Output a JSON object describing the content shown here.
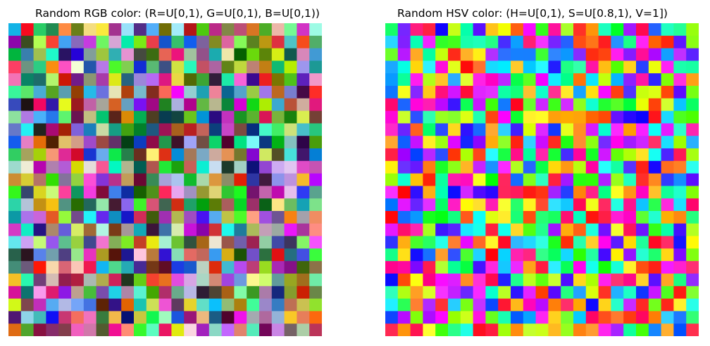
{
  "chart_data": [
    {
      "type": "heatmap",
      "title": "Random RGB color: (R=U[0,1), G=U[0,1), B=U[0,1))",
      "rows": 25,
      "cols": 25,
      "color_model": "rgb",
      "channel_ranges": {
        "R": [
          0,
          1
        ],
        "G": [
          0,
          1
        ],
        "B": [
          0,
          1
        ]
      },
      "seed": 1234,
      "axes_visible": false
    },
    {
      "type": "heatmap",
      "title": "Random HSV color: (H=U[0,1), S=U[0.8,1), V=1])",
      "rows": 25,
      "cols": 25,
      "color_model": "hsv",
      "channel_ranges": {
        "H": [
          0,
          1
        ],
        "S": [
          0.8,
          1
        ],
        "V": [
          1,
          1
        ]
      },
      "seed": 98765,
      "axes_visible": false
    }
  ]
}
